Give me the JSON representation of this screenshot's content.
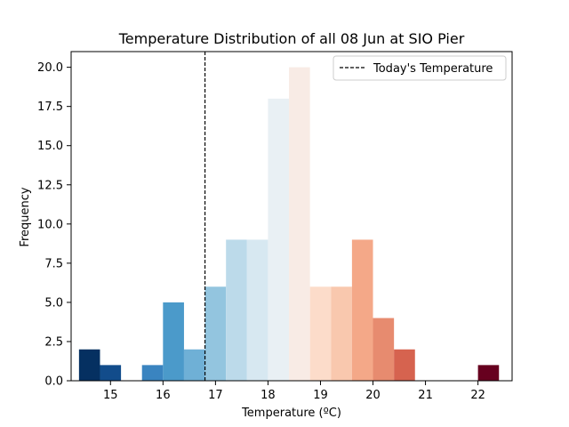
{
  "chart_data": {
    "type": "bar",
    "title": "Temperature Distribution of all 08 Jun at SIO Pier",
    "xlabel": "Temperature (ºC)",
    "ylabel": "Frequency",
    "xlim": [
      14.25,
      22.65
    ],
    "ylim": [
      0,
      21
    ],
    "grid": false,
    "legend_position": "top-right",
    "x_ticks": [
      15,
      16,
      17,
      18,
      19,
      20,
      21,
      22
    ],
    "y_ticks": [
      0,
      2.5,
      5,
      7.5,
      10,
      12.5,
      15,
      17.5,
      20
    ],
    "bin_width": 0.39,
    "bins": [
      {
        "x": 14.6,
        "value": 2,
        "color": "#053061"
      },
      {
        "x": 15.0,
        "value": 1,
        "color": "#124c8b"
      },
      {
        "x": 15.4,
        "value": 0,
        "color": "#2166ac"
      },
      {
        "x": 15.8,
        "value": 1,
        "color": "#3a84c0"
      },
      {
        "x": 16.2,
        "value": 5,
        "color": "#4b9aca"
      },
      {
        "x": 16.6,
        "value": 2,
        "color": "#6fb0d6"
      },
      {
        "x": 17.0,
        "value": 6,
        "color": "#93c5df"
      },
      {
        "x": 17.4,
        "value": 9,
        "color": "#bcdaea"
      },
      {
        "x": 17.8,
        "value": 9,
        "color": "#d7e8f1"
      },
      {
        "x": 18.2,
        "value": 18,
        "color": "#e9f0f4"
      },
      {
        "x": 18.6,
        "value": 20,
        "color": "#f8ebe5"
      },
      {
        "x": 19.0,
        "value": 6,
        "color": "#fcdcca"
      },
      {
        "x": 19.4,
        "value": 6,
        "color": "#f9c8ae"
      },
      {
        "x": 19.8,
        "value": 9,
        "color": "#f4a888"
      },
      {
        "x": 20.2,
        "value": 4,
        "color": "#e78b6f"
      },
      {
        "x": 20.6,
        "value": 2,
        "color": "#d6634f"
      },
      {
        "x": 21.0,
        "value": 0,
        "color": "#c13d3b"
      },
      {
        "x": 21.4,
        "value": 0,
        "color": "#a61e2e"
      },
      {
        "x": 21.8,
        "value": 0,
        "color": "#851029"
      },
      {
        "x": 22.2,
        "value": 1,
        "color": "#67001f"
      }
    ],
    "reference_line": {
      "x": 16.8,
      "style": "dashed",
      "color": "#000000",
      "label": "Today's Temperature"
    }
  }
}
